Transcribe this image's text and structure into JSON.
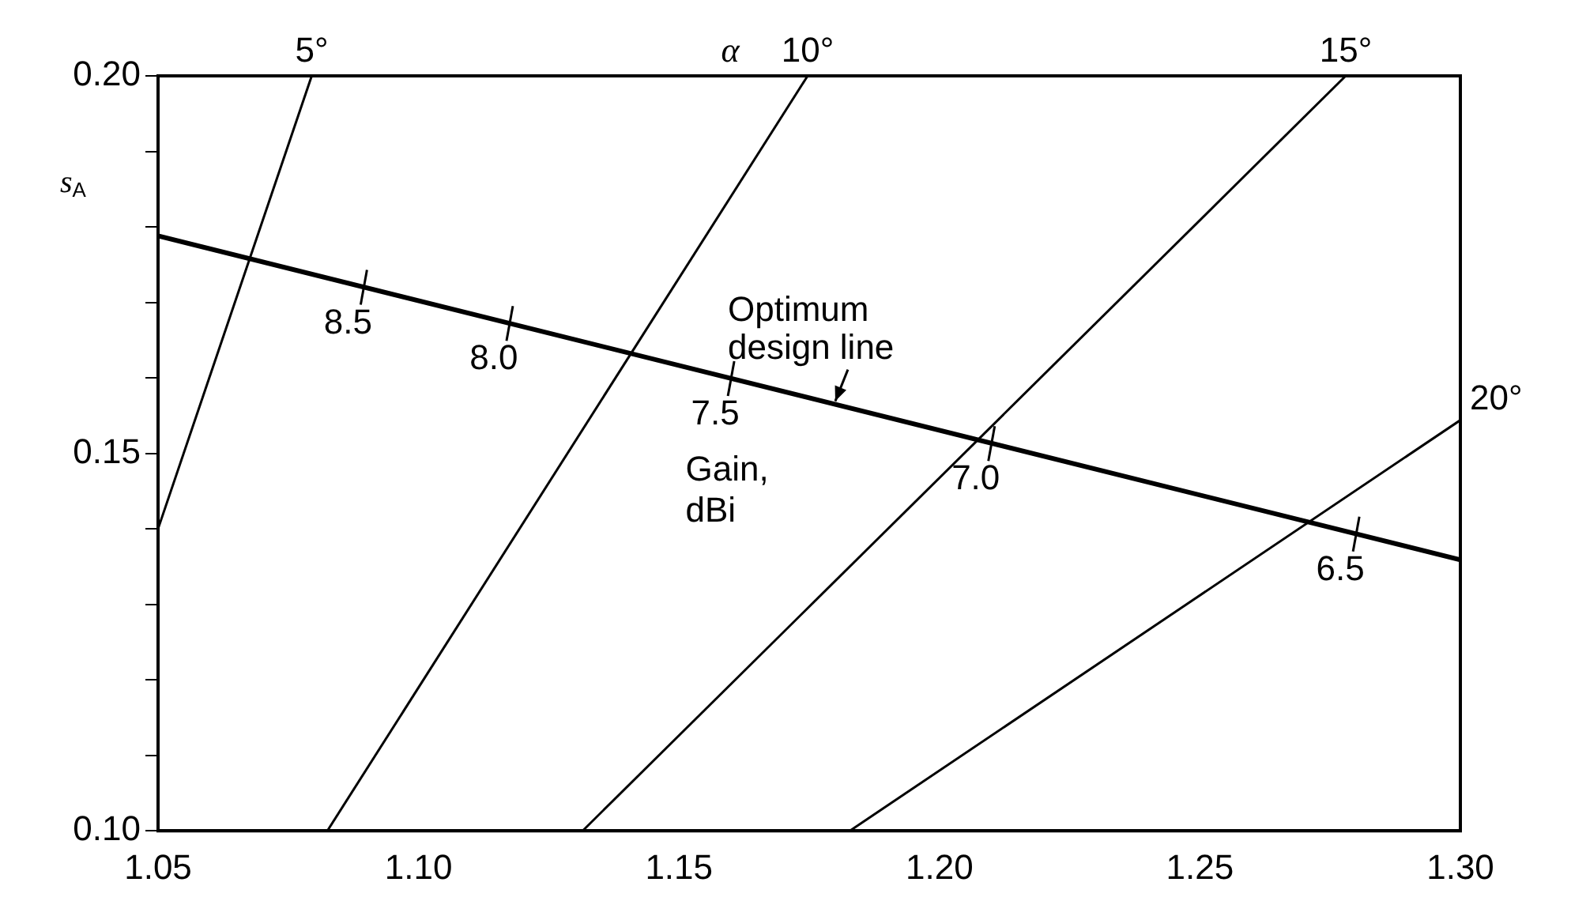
{
  "chart_data": {
    "type": "line",
    "x2label": "α",
    "ylabel": "s$_{A}$",
    "xlim": [
      1.05,
      1.3
    ],
    "xticks": [
      1.05,
      {
        "value": 1.1,
        "label": "1.10"
      },
      1.15,
      {
        "value": 1.2,
        "label": "1.20"
      },
      1.25,
      {
        "value": 1.3,
        "label": "1.30"
      }
    ],
    "ylim": [
      0.1,
      0.2
    ],
    "yticks": [
      {
        "value": 0.1,
        "label": "0.10"
      },
      {
        "value": 0.11,
        "label": null
      },
      {
        "value": 0.12,
        "label": null
      },
      {
        "value": 0.13,
        "label": null
      },
      {
        "value": 0.14,
        "label": null
      },
      {
        "value": 0.15,
        "label": "0.15"
      },
      {
        "value": 0.16,
        "label": null
      },
      {
        "value": 0.17,
        "label": null
      },
      {
        "value": 0.18,
        "label": null
      },
      {
        "value": 0.19,
        "label": null
      },
      {
        "value": 0.2,
        "label": "0.20"
      }
    ],
    "grid": false,
    "legend": false,
    "series": [
      {
        "name": "5°",
        "color": "#000000",
        "x": [
          1.05,
          1.0795
        ],
        "values": [
          0.14,
          0.2
        ]
      },
      {
        "name": "10°",
        "color": "#000000",
        "x": [
          1.0825,
          1.1747
        ],
        "values": [
          0.1,
          0.2
        ]
      },
      {
        "name": "15°",
        "color": "#000000",
        "x": [
          1.1315,
          1.278
        ],
        "values": [
          0.1,
          0.2
        ]
      },
      {
        "name": "20°",
        "color": "#000000",
        "x": [
          1.1828,
          1.3
        ],
        "values": [
          0.1,
          0.1544
        ]
      },
      {
        "name": "Optimum design line",
        "color": "#000000",
        "x": [
          1.05,
          1.3
        ],
        "values": [
          0.1788,
          0.1359
        ]
      }
    ],
    "annotations": [
      {
        "text": "8.5",
        "x": 1.0895,
        "y": 0.172
      },
      {
        "text": "8.0",
        "x": 1.1175,
        "y": 0.1672
      },
      {
        "text": "7.5",
        "x": 1.16,
        "y": 0.1599
      },
      {
        "text": "7.0",
        "x": 1.21,
        "y": 0.1513
      },
      {
        "text": "6.5",
        "x": 1.28,
        "y": 0.1393
      },
      "Gain, dBi"
    ]
  }
}
